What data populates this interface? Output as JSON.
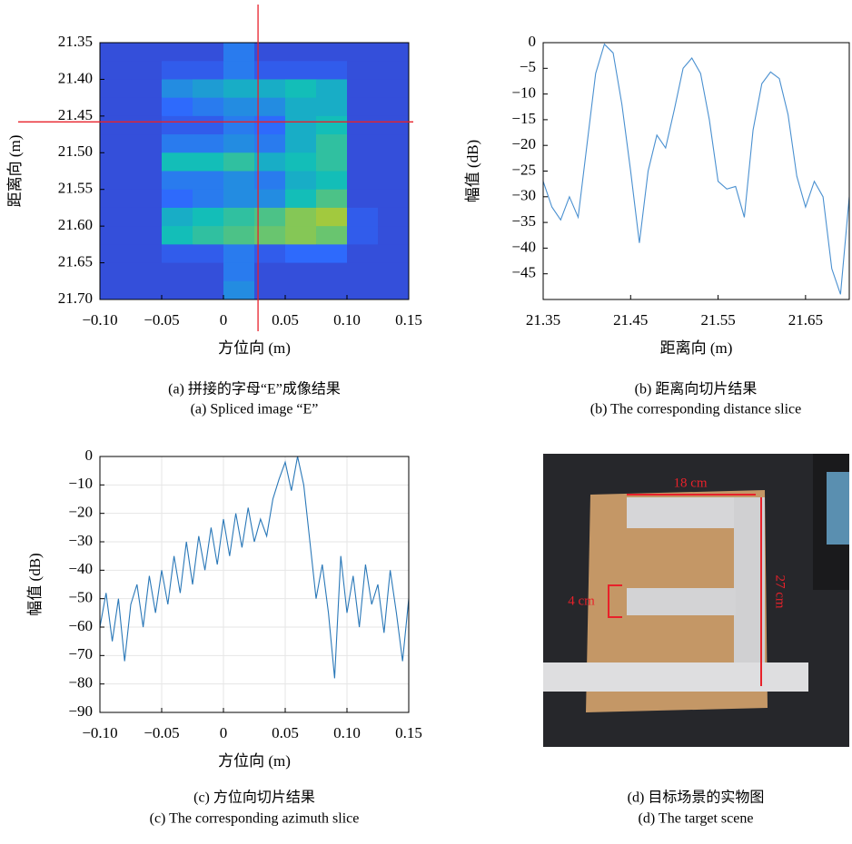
{
  "chart_data": [
    {
      "type": "heatmap",
      "caption": [
        "(a) 拼接的字母“E”成像结果",
        "(a) Spliced image “E”"
      ],
      "x_label": "方位向 (m)",
      "y_label": "距离向 (m)",
      "xlim": [
        -0.1,
        0.15
      ],
      "ylim": [
        21.35,
        21.7
      ],
      "y_reversed": true,
      "xticks": [
        {
          "value": -0.1,
          "label": "−0.10"
        },
        {
          "value": -0.05,
          "label": "−0.05"
        },
        0,
        0.05,
        {
          "value": 0.1,
          "label": "0.10"
        },
        0.15
      ],
      "yticks": [
        21.35,
        {
          "value": 21.4,
          "label": "21.40"
        },
        21.45,
        {
          "value": 21.5,
          "label": "21.50"
        },
        21.55,
        {
          "value": 21.6,
          "label": "21.60"
        },
        21.65,
        {
          "value": 21.7,
          "label": "21.70"
        }
      ],
      "colormap": [
        "#3e26a8",
        "#2e6afc",
        "#13beb8",
        "#a2c93e",
        "#f9fb15"
      ],
      "values": [
        [
          0.15,
          0.15,
          0.15,
          0.15,
          0.3,
          0.15,
          0.15,
          0.15,
          0.15,
          0.15
        ],
        [
          0.15,
          0.15,
          0.2,
          0.2,
          0.3,
          0.2,
          0.2,
          0.2,
          0.15,
          0.15
        ],
        [
          0.15,
          0.15,
          0.35,
          0.4,
          0.45,
          0.45,
          0.5,
          0.45,
          0.15,
          0.15
        ],
        [
          0.15,
          0.15,
          0.25,
          0.3,
          0.35,
          0.35,
          0.45,
          0.45,
          0.15,
          0.15
        ],
        [
          0.15,
          0.15,
          0.2,
          0.2,
          0.3,
          0.25,
          0.45,
          0.5,
          0.15,
          0.15
        ],
        [
          0.15,
          0.15,
          0.3,
          0.3,
          0.35,
          0.3,
          0.45,
          0.55,
          0.15,
          0.15
        ],
        [
          0.15,
          0.15,
          0.5,
          0.5,
          0.55,
          0.45,
          0.5,
          0.55,
          0.15,
          0.15
        ],
        [
          0.15,
          0.15,
          0.3,
          0.3,
          0.35,
          0.3,
          0.45,
          0.5,
          0.15,
          0.15
        ],
        [
          0.15,
          0.15,
          0.25,
          0.3,
          0.35,
          0.35,
          0.5,
          0.6,
          0.15,
          0.15
        ],
        [
          0.15,
          0.15,
          0.45,
          0.5,
          0.55,
          0.6,
          0.7,
          0.75,
          0.2,
          0.15
        ],
        [
          0.15,
          0.15,
          0.5,
          0.55,
          0.6,
          0.65,
          0.7,
          0.65,
          0.2,
          0.15
        ],
        [
          0.15,
          0.15,
          0.2,
          0.2,
          0.3,
          0.2,
          0.25,
          0.25,
          0.15,
          0.15
        ],
        [
          0.15,
          0.15,
          0.15,
          0.15,
          0.3,
          0.15,
          0.15,
          0.15,
          0.15,
          0.15
        ],
        [
          0.15,
          0.15,
          0.15,
          0.15,
          0.35,
          0.15,
          0.15,
          0.15,
          0.15,
          0.15
        ]
      ],
      "crosshair": {
        "x": 0.028,
        "y": 21.458,
        "color": "#e8212a"
      }
    },
    {
      "type": "line",
      "caption": [
        "(b) 距离向切片结果",
        "(b) The corresponding distance slice"
      ],
      "x_label": "距离向 (m)",
      "y_label": "幅值 (dB)",
      "color": "#4a90d0",
      "grid": false,
      "xlim": [
        21.35,
        21.7
      ],
      "ylim": [
        -50,
        0
      ],
      "xticks": [
        21.35,
        21.45,
        21.55,
        21.65
      ],
      "yticks": [
        0,
        {
          "value": -5,
          "label": "−5"
        },
        {
          "value": -10,
          "label": "−10"
        },
        {
          "value": -15,
          "label": "−15"
        },
        {
          "value": -20,
          "label": "−20"
        },
        {
          "value": -25,
          "label": "−25"
        },
        {
          "value": -30,
          "label": "−30"
        },
        {
          "value": -35,
          "label": "−35"
        },
        {
          "value": -40,
          "label": "−40"
        },
        {
          "value": -45,
          "label": "−45"
        }
      ],
      "x": [
        21.35,
        21.36,
        21.37,
        21.38,
        21.39,
        21.4,
        21.41,
        21.42,
        21.43,
        21.44,
        21.45,
        21.46,
        21.47,
        21.48,
        21.49,
        21.5,
        21.51,
        21.52,
        21.53,
        21.54,
        21.55,
        21.56,
        21.57,
        21.58,
        21.59,
        21.6,
        21.61,
        21.62,
        21.63,
        21.64,
        21.65,
        21.66,
        21.67,
        21.68,
        21.69,
        21.7
      ],
      "values": [
        -27,
        -32,
        -34.5,
        -30,
        -34,
        -20,
        -6,
        -0.3,
        -2,
        -12,
        -25,
        -39,
        -25,
        -18,
        -20.5,
        -13,
        -5,
        -3,
        -6,
        -15,
        -27,
        -28.5,
        -28,
        -34,
        -17,
        -8,
        -5.7,
        -7,
        -14,
        -26,
        -32,
        -27,
        -30,
        -44,
        -49,
        -30
      ]
    },
    {
      "type": "line",
      "caption": [
        "(c) 方位向切片结果",
        "(c) The corresponding azimuth slice"
      ],
      "x_label": "方位向 (m)",
      "y_label": "幅值 (dB)",
      "color": "#2a78b8",
      "grid": true,
      "xlim": [
        -0.1,
        0.15
      ],
      "ylim": [
        -90,
        0
      ],
      "xticks": [
        {
          "value": -0.1,
          "label": "−0.10"
        },
        {
          "value": -0.05,
          "label": "−0.05"
        },
        0,
        0.05,
        {
          "value": 0.1,
          "label": "0.10"
        },
        0.15
      ],
      "yticks": [
        0,
        {
          "value": -10,
          "label": "−10"
        },
        {
          "value": -20,
          "label": "−20"
        },
        {
          "value": -30,
          "label": "−30"
        },
        {
          "value": -40,
          "label": "−40"
        },
        {
          "value": -50,
          "label": "−50"
        },
        {
          "value": -60,
          "label": "−60"
        },
        {
          "value": -70,
          "label": "−70"
        },
        {
          "value": -80,
          "label": "−80"
        },
        {
          "value": -90,
          "label": "−90"
        }
      ],
      "x": [
        -0.1,
        -0.095,
        -0.09,
        -0.085,
        -0.08,
        -0.075,
        -0.07,
        -0.065,
        -0.06,
        -0.055,
        -0.05,
        -0.045,
        -0.04,
        -0.035,
        -0.03,
        -0.025,
        -0.02,
        -0.015,
        -0.01,
        -0.005,
        0,
        0.005,
        0.01,
        0.015,
        0.02,
        0.025,
        0.03,
        0.035,
        0.04,
        0.045,
        0.05,
        0.055,
        0.06,
        0.065,
        0.07,
        0.075,
        0.08,
        0.085,
        0.09,
        0.095,
        0.1,
        0.105,
        0.11,
        0.115,
        0.12,
        0.125,
        0.13,
        0.135,
        0.14,
        0.145,
        0.15
      ],
      "values": [
        -60,
        -48,
        -65,
        -50,
        -72,
        -52,
        -45,
        -60,
        -42,
        -55,
        -40,
        -52,
        -35,
        -48,
        -30,
        -45,
        -28,
        -40,
        -25,
        -38,
        -22,
        -35,
        -20,
        -32,
        -18,
        -30,
        -22,
        -28,
        -15,
        -8,
        -2,
        -12,
        0,
        -10,
        -30,
        -50,
        -38,
        -55,
        -78,
        -35,
        -55,
        -42,
        -60,
        -38,
        -52,
        -45,
        -62,
        -40,
        -55,
        -72,
        -50
      ]
    }
  ],
  "photo": {
    "caption": [
      "(d) 目标场景的实物图",
      "(d) The target scene"
    ],
    "annotations": [
      "18 cm",
      "4 cm",
      "27 cm"
    ]
  }
}
